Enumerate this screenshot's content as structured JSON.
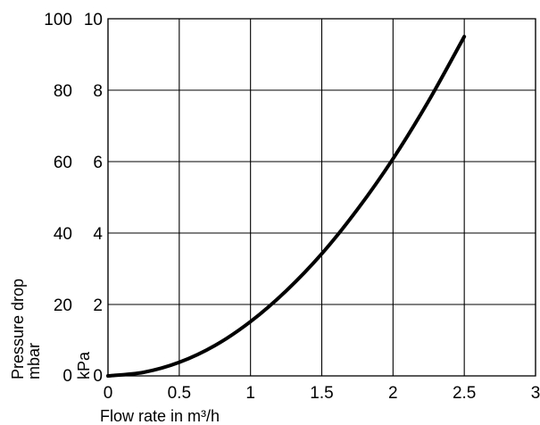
{
  "chart_data": {
    "type": "line",
    "title": "",
    "xlabel": "Flow rate in m³/h",
    "ylabel_lines": [
      "Pressure drop",
      "mbar"
    ],
    "ylabel_secondary": "kPa",
    "xlim": [
      0,
      3
    ],
    "ylim_mbar": [
      0,
      100
    ],
    "ylim_kpa": [
      0,
      10
    ],
    "x_ticks": [
      {
        "value": 0,
        "label": "0"
      },
      {
        "value": 0.5,
        "label": "0.5"
      },
      {
        "value": 1,
        "label": "1"
      },
      {
        "value": 1.5,
        "label": "1.5"
      },
      {
        "value": 2,
        "label": "2"
      },
      {
        "value": 2.5,
        "label": "2.5"
      },
      {
        "value": 3,
        "label": "3"
      }
    ],
    "y_ticks_mbar": [
      {
        "value": 0,
        "label": "0"
      },
      {
        "value": 20,
        "label": "20"
      },
      {
        "value": 40,
        "label": "40"
      },
      {
        "value": 60,
        "label": "60"
      },
      {
        "value": 80,
        "label": "80"
      },
      {
        "value": 100,
        "label": "100"
      }
    ],
    "y_ticks_kpa": [
      {
        "value": 0,
        "label": "0"
      },
      {
        "value": 2,
        "label": "2"
      },
      {
        "value": 4,
        "label": "4"
      },
      {
        "value": 6,
        "label": "6"
      },
      {
        "value": 8,
        "label": "8"
      },
      {
        "value": 10,
        "label": "10"
      }
    ],
    "grid": true,
    "legend": "none",
    "series": [
      {
        "color": "#000000",
        "x": [
          0,
          0.25,
          0.5,
          0.75,
          1,
          1.25,
          1.5,
          1.75,
          2,
          2.25,
          2.5
        ],
        "y": [
          0,
          1,
          3.8,
          8.5,
          15.2,
          23.8,
          34.2,
          46.6,
          60.8,
          77.0,
          95.0
        ]
      }
    ]
  }
}
